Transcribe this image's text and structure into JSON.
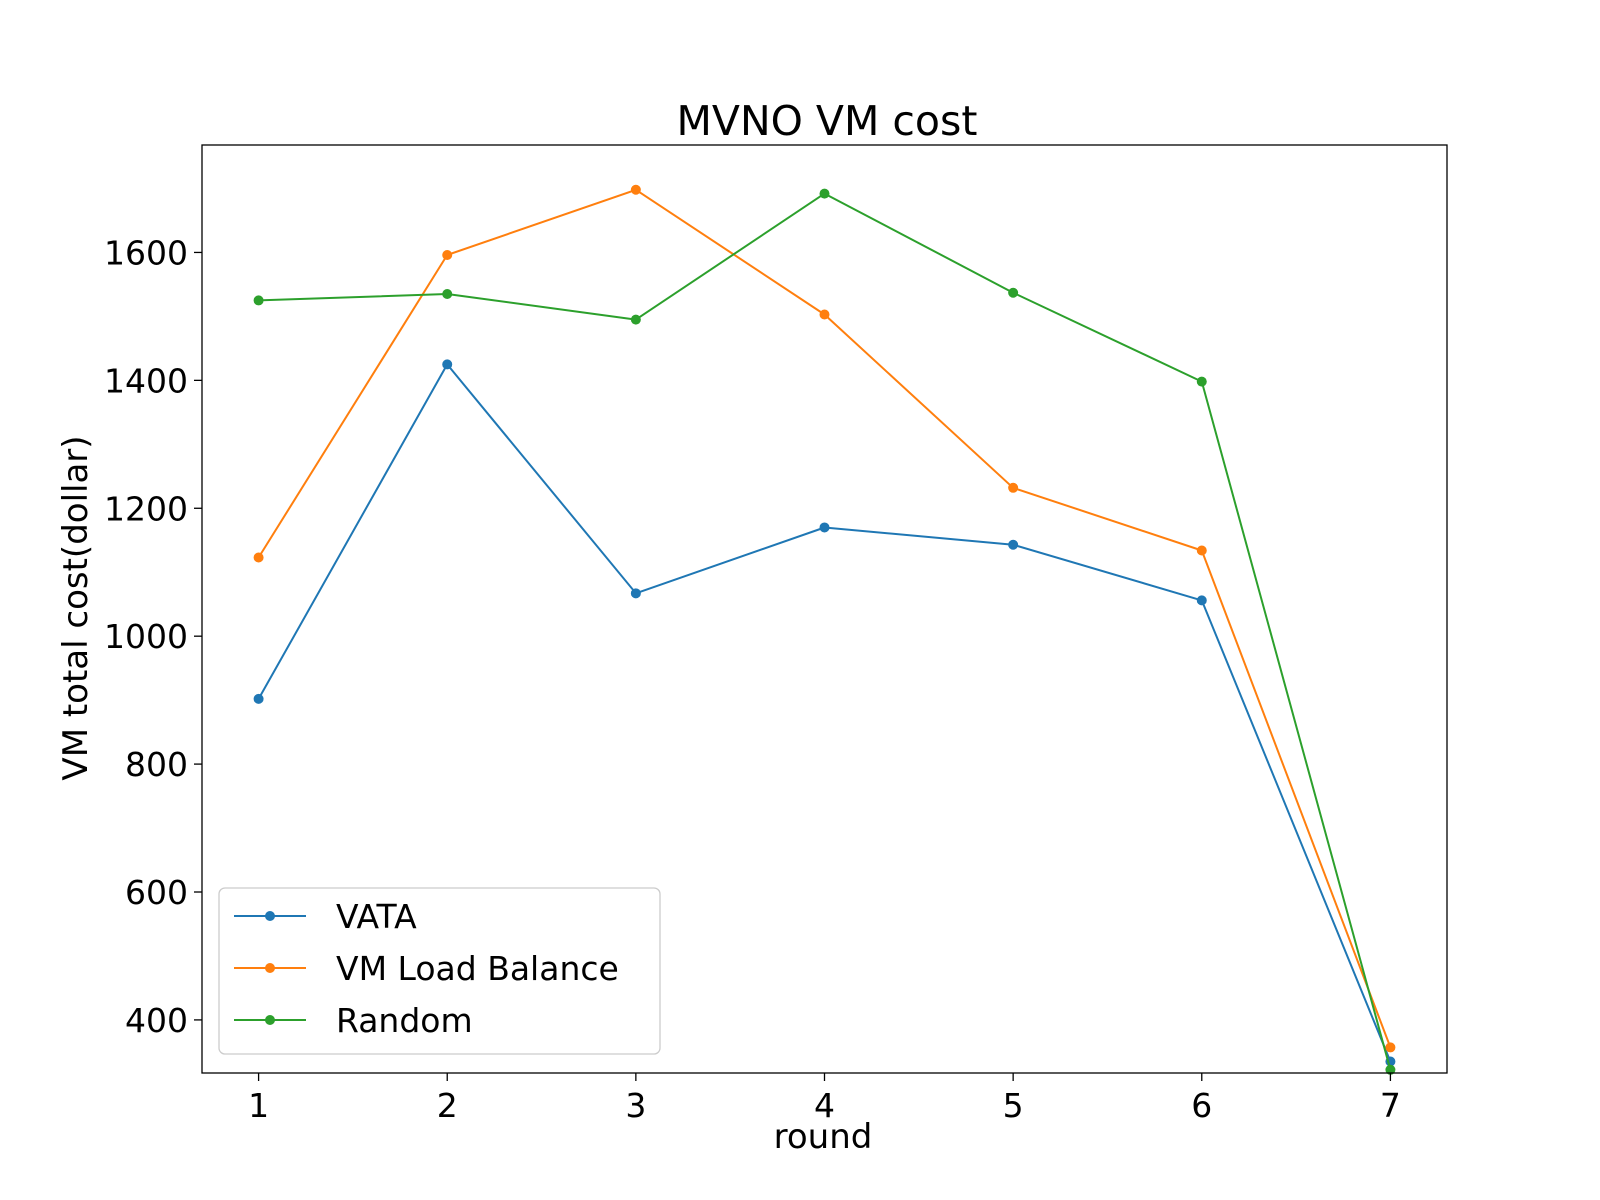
{
  "chart_data": {
    "type": "line",
    "title": "MVNO VM cost",
    "xlabel": "round",
    "ylabel": "VM total cost(dollar)",
    "x": [
      1,
      2,
      3,
      4,
      5,
      6,
      7
    ],
    "xticks": [
      "1",
      "2",
      "3",
      "4",
      "5",
      "6",
      "7"
    ],
    "yticks": [
      "400",
      "600",
      "800",
      "1000",
      "1200",
      "1400",
      "1600"
    ],
    "xlim": [
      0.7,
      7.3
    ],
    "ylim": [
      317,
      1768
    ],
    "grid": false,
    "legend_position": "lower-left",
    "series": [
      {
        "name": "VATA",
        "color": "#1f77b4",
        "marker": "circle",
        "values": [
          902,
          1425,
          1067,
          1170,
          1143,
          1056,
          335
        ]
      },
      {
        "name": "VM Load Balance",
        "color": "#ff7f0e",
        "marker": "circle",
        "values": [
          1123,
          1596,
          1698,
          1503,
          1232,
          1134,
          357
        ]
      },
      {
        "name": "Random",
        "color": "#2ca02c",
        "marker": "circle",
        "values": [
          1525,
          1535,
          1495,
          1692,
          1537,
          1398,
          322
        ]
      }
    ]
  }
}
